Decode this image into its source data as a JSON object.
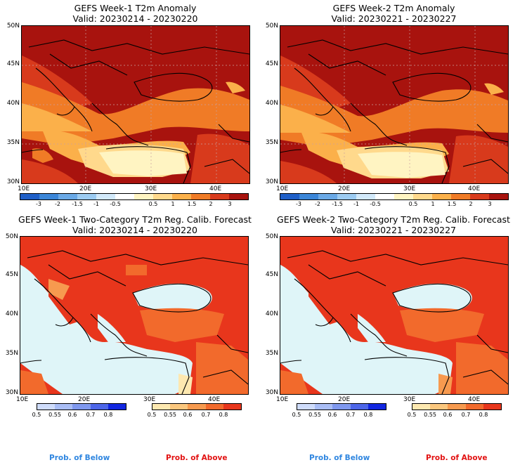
{
  "panels": [
    {
      "line1": "GEFS Week-1 T2m Anomaly",
      "line2": "Valid: 20230214 - 20230220"
    },
    {
      "line1": "GEFS Week-2 T2m Anomaly",
      "line2": "Valid: 20230221 - 20230227"
    },
    {
      "line1": "GEFS Week-1 Two-Category T2m Reg. Calib. Forecast",
      "line2": "Valid: 20230214 - 20230220"
    },
    {
      "line1": "GEFS Week-2 Two-Category T2m Reg. Calib. Forecast",
      "line2": "Valid: 20230221 - 20230227"
    }
  ],
  "lat_labels": [
    "50N",
    "45N",
    "40N",
    "35N",
    "30N"
  ],
  "lon_labels": [
    "10E",
    "20E",
    "30E",
    "40E"
  ],
  "anomaly_colorbar": {
    "ticks": [
      "-3",
      "-2",
      "-1.5",
      "-1",
      "-0.5",
      "0.5",
      "1",
      "1.5",
      "2",
      "3"
    ],
    "colors": [
      "#1f5fc8",
      "#3b86d8",
      "#6aa9e6",
      "#9ccbf1",
      "#d2e9fa",
      "#ffffff",
      "#fff4c2",
      "#ffd98c",
      "#fbb04a",
      "#f07b26",
      "#d83a1c",
      "#a8130e"
    ]
  },
  "prob_colorbar": {
    "below_ticks": [
      "0.5",
      "0.55",
      "0.6",
      "0.7",
      "0.8"
    ],
    "above_ticks": [
      "0.5",
      "0.55",
      "0.6",
      "0.7",
      "0.8"
    ],
    "below_colors": [
      "#cfdcfb",
      "#a9bdf5",
      "#7f98ee",
      "#4d66e8",
      "#1226e0"
    ],
    "above_colors": [
      "#fde8b0",
      "#fbc77e",
      "#f79a4f",
      "#f26a2c",
      "#e8361c"
    ]
  },
  "legend": {
    "below": "Prob. of Below",
    "above": "Prob. of Above",
    "below_color": "#2f86e0",
    "above_color": "#e21212"
  },
  "map_colors": {
    "anomaly_hot": "#a8130e",
    "anomaly_warm": "#d83a1c",
    "anomaly_mid": "#f07b26",
    "anomaly_low": "#fbb04a",
    "anomaly_pale": "#ffd98c",
    "anomaly_cream": "#fff4c2",
    "prob_above": "#e8361c",
    "prob_above_mid": "#f26a2c",
    "prob_above_low": "#f79a4f",
    "water": "#dff5f8"
  }
}
